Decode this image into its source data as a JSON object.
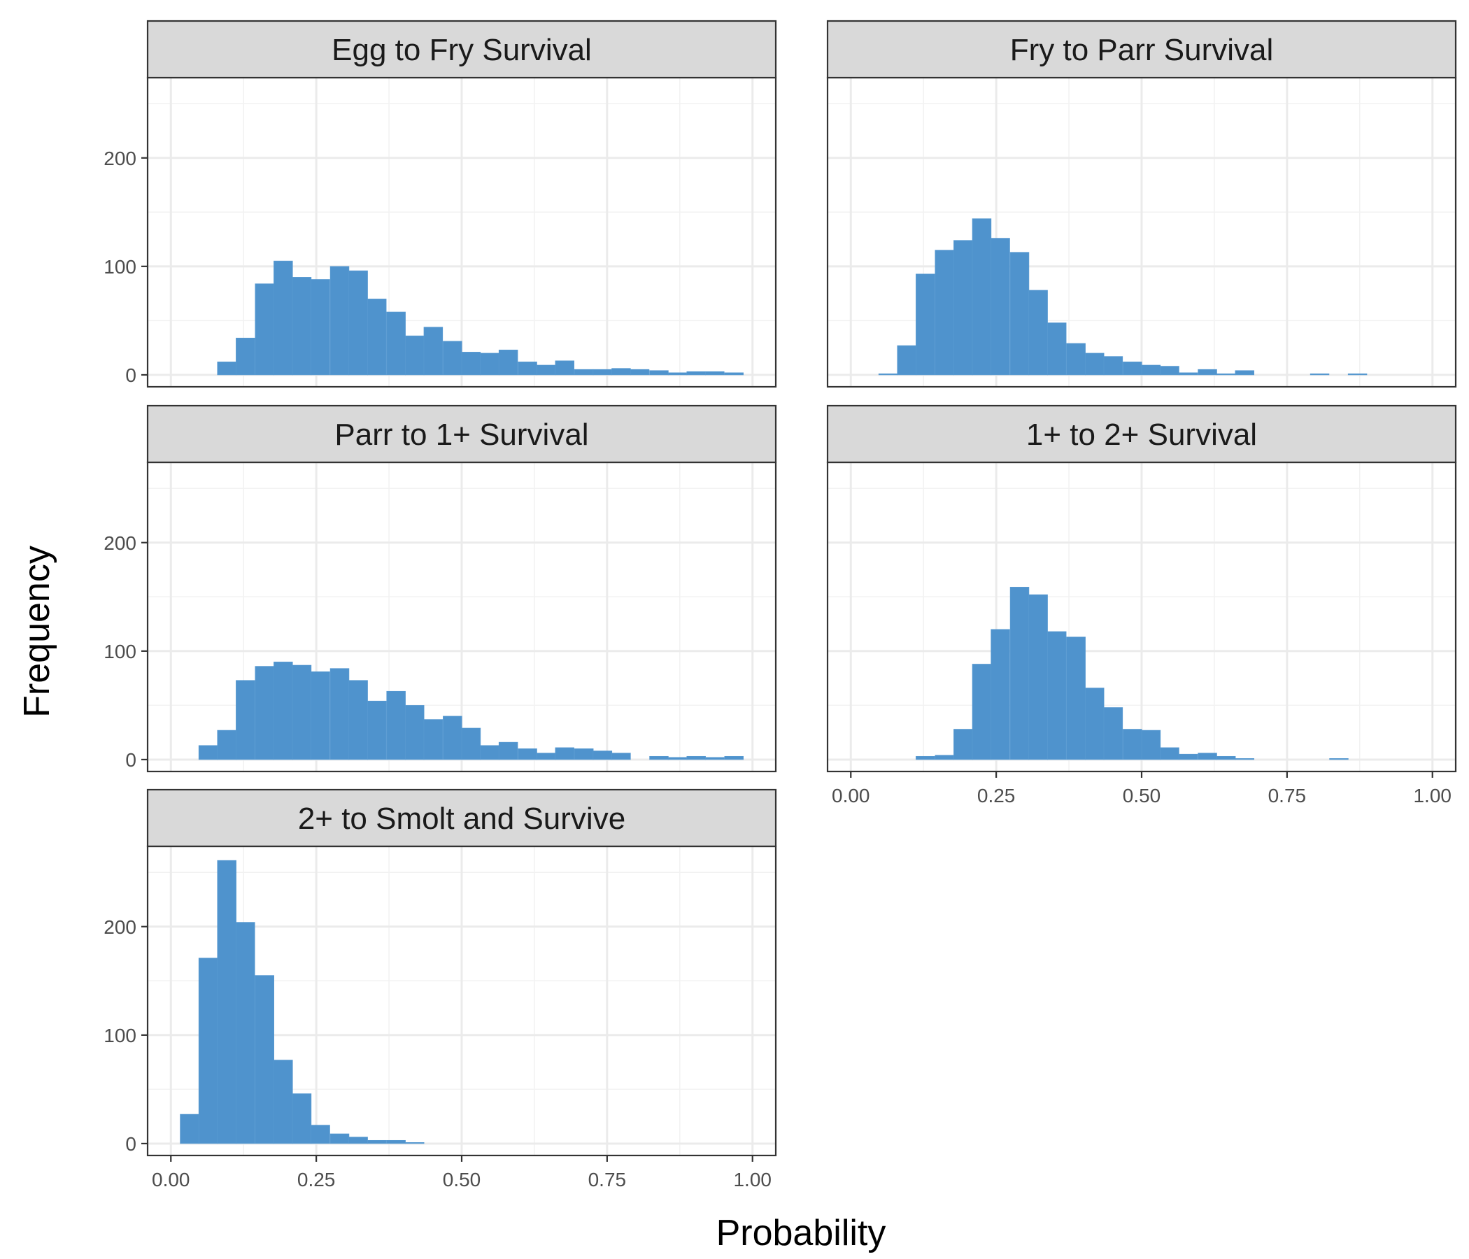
{
  "chart_data": {
    "type": "bar",
    "xlabel": "Probability",
    "ylabel": "Frequency",
    "xlim": [
      -0.04,
      1.04
    ],
    "ylim": [
      -11,
      274
    ],
    "x_ticks": [
      0.0,
      0.25,
      0.5,
      0.75,
      1.0
    ],
    "x_tick_labels": [
      "0.00",
      "0.25",
      "0.50",
      "0.75",
      "1.00"
    ],
    "y_ticks": [
      0,
      100,
      200
    ],
    "y_tick_labels": [
      "0",
      "100",
      "200"
    ],
    "grid": true,
    "bar_color": "#4f93cd",
    "bin_width": 0.0323,
    "panels": [
      {
        "title": "Egg to Fry Survival",
        "bins": [
          {
            "x0": 0.08,
            "count": 12
          },
          {
            "x0": 0.112,
            "count": 34
          },
          {
            "x0": 0.145,
            "count": 84
          },
          {
            "x0": 0.177,
            "count": 105
          },
          {
            "x0": 0.209,
            "count": 90
          },
          {
            "x0": 0.241,
            "count": 88
          },
          {
            "x0": 0.274,
            "count": 100
          },
          {
            "x0": 0.306,
            "count": 96
          },
          {
            "x0": 0.338,
            "count": 70
          },
          {
            "x0": 0.371,
            "count": 58
          },
          {
            "x0": 0.403,
            "count": 36
          },
          {
            "x0": 0.435,
            "count": 44
          },
          {
            "x0": 0.468,
            "count": 31
          },
          {
            "x0": 0.5,
            "count": 21
          },
          {
            "x0": 0.532,
            "count": 20
          },
          {
            "x0": 0.564,
            "count": 23
          },
          {
            "x0": 0.597,
            "count": 12
          },
          {
            "x0": 0.629,
            "count": 9
          },
          {
            "x0": 0.661,
            "count": 13
          },
          {
            "x0": 0.694,
            "count": 5
          },
          {
            "x0": 0.726,
            "count": 5
          },
          {
            "x0": 0.758,
            "count": 6
          },
          {
            "x0": 0.79,
            "count": 5
          },
          {
            "x0": 0.823,
            "count": 4
          },
          {
            "x0": 0.855,
            "count": 2
          },
          {
            "x0": 0.887,
            "count": 3
          },
          {
            "x0": 0.919,
            "count": 3
          },
          {
            "x0": 0.952,
            "count": 2
          }
        ]
      },
      {
        "title": "Fry to Parr Survival",
        "bins": [
          {
            "x0": 0.048,
            "count": 1
          },
          {
            "x0": 0.08,
            "count": 27
          },
          {
            "x0": 0.112,
            "count": 93
          },
          {
            "x0": 0.145,
            "count": 115
          },
          {
            "x0": 0.177,
            "count": 124
          },
          {
            "x0": 0.209,
            "count": 144
          },
          {
            "x0": 0.241,
            "count": 126
          },
          {
            "x0": 0.274,
            "count": 113
          },
          {
            "x0": 0.306,
            "count": 78
          },
          {
            "x0": 0.338,
            "count": 48
          },
          {
            "x0": 0.371,
            "count": 29
          },
          {
            "x0": 0.403,
            "count": 20
          },
          {
            "x0": 0.435,
            "count": 17
          },
          {
            "x0": 0.468,
            "count": 12
          },
          {
            "x0": 0.5,
            "count": 9
          },
          {
            "x0": 0.532,
            "count": 8
          },
          {
            "x0": 0.564,
            "count": 2
          },
          {
            "x0": 0.597,
            "count": 5
          },
          {
            "x0": 0.629,
            "count": 1
          },
          {
            "x0": 0.661,
            "count": 4
          },
          {
            "x0": 0.79,
            "count": 1
          },
          {
            "x0": 0.855,
            "count": 1
          }
        ]
      },
      {
        "title": "Parr to 1+ Survival",
        "bins": [
          {
            "x0": 0.048,
            "count": 13
          },
          {
            "x0": 0.08,
            "count": 27
          },
          {
            "x0": 0.112,
            "count": 73
          },
          {
            "x0": 0.145,
            "count": 86
          },
          {
            "x0": 0.177,
            "count": 90
          },
          {
            "x0": 0.209,
            "count": 87
          },
          {
            "x0": 0.241,
            "count": 81
          },
          {
            "x0": 0.274,
            "count": 84
          },
          {
            "x0": 0.306,
            "count": 73
          },
          {
            "x0": 0.338,
            "count": 54
          },
          {
            "x0": 0.371,
            "count": 63
          },
          {
            "x0": 0.403,
            "count": 50
          },
          {
            "x0": 0.435,
            "count": 37
          },
          {
            "x0": 0.468,
            "count": 40
          },
          {
            "x0": 0.5,
            "count": 29
          },
          {
            "x0": 0.532,
            "count": 13
          },
          {
            "x0": 0.564,
            "count": 16
          },
          {
            "x0": 0.597,
            "count": 10
          },
          {
            "x0": 0.629,
            "count": 6
          },
          {
            "x0": 0.661,
            "count": 11
          },
          {
            "x0": 0.694,
            "count": 10
          },
          {
            "x0": 0.726,
            "count": 8
          },
          {
            "x0": 0.758,
            "count": 6
          },
          {
            "x0": 0.823,
            "count": 3
          },
          {
            "x0": 0.855,
            "count": 2
          },
          {
            "x0": 0.887,
            "count": 3
          },
          {
            "x0": 0.919,
            "count": 2
          },
          {
            "x0": 0.952,
            "count": 3
          }
        ]
      },
      {
        "title": "1+ to 2+ Survival",
        "bins": [
          {
            "x0": 0.112,
            "count": 3
          },
          {
            "x0": 0.145,
            "count": 4
          },
          {
            "x0": 0.177,
            "count": 28
          },
          {
            "x0": 0.209,
            "count": 88
          },
          {
            "x0": 0.241,
            "count": 120
          },
          {
            "x0": 0.274,
            "count": 159
          },
          {
            "x0": 0.306,
            "count": 152
          },
          {
            "x0": 0.338,
            "count": 118
          },
          {
            "x0": 0.371,
            "count": 113
          },
          {
            "x0": 0.403,
            "count": 66
          },
          {
            "x0": 0.435,
            "count": 48
          },
          {
            "x0": 0.468,
            "count": 28
          },
          {
            "x0": 0.5,
            "count": 27
          },
          {
            "x0": 0.532,
            "count": 11
          },
          {
            "x0": 0.564,
            "count": 5
          },
          {
            "x0": 0.597,
            "count": 6
          },
          {
            "x0": 0.629,
            "count": 3
          },
          {
            "x0": 0.661,
            "count": 1
          },
          {
            "x0": 0.823,
            "count": 1
          }
        ]
      },
      {
        "title": "2+ to Smolt and Survive",
        "bins": [
          {
            "x0": 0.016,
            "count": 27
          },
          {
            "x0": 0.048,
            "count": 171
          },
          {
            "x0": 0.08,
            "count": 261
          },
          {
            "x0": 0.112,
            "count": 204
          },
          {
            "x0": 0.145,
            "count": 155
          },
          {
            "x0": 0.177,
            "count": 77
          },
          {
            "x0": 0.209,
            "count": 46
          },
          {
            "x0": 0.241,
            "count": 17
          },
          {
            "x0": 0.274,
            "count": 9
          },
          {
            "x0": 0.306,
            "count": 6
          },
          {
            "x0": 0.338,
            "count": 3
          },
          {
            "x0": 0.371,
            "count": 3
          },
          {
            "x0": 0.403,
            "count": 1
          }
        ]
      }
    ]
  }
}
